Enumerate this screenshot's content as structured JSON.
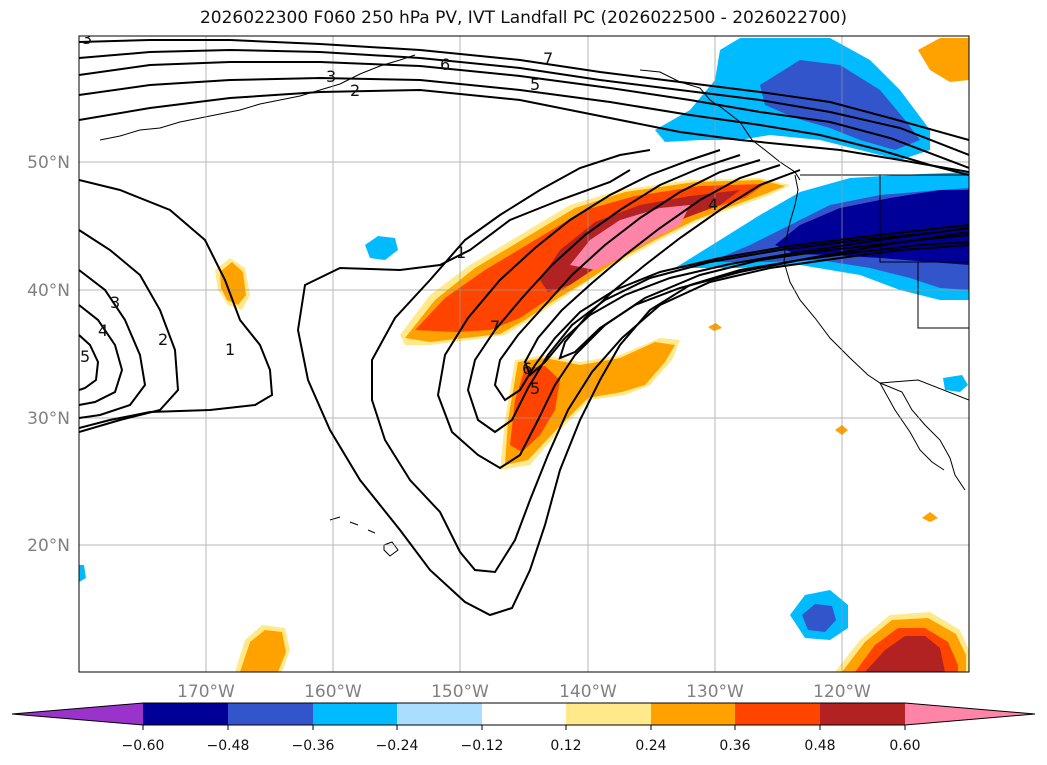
{
  "title": "2026022300 F060 250 hPa PV, IVT Landfall PC (2026022500 - 2026022700)",
  "map": {
    "lat_labels": [
      "20°N",
      "30°N",
      "40°N",
      "50°N"
    ],
    "lon_labels": [
      "170°W",
      "160°W",
      "150°W",
      "140°W",
      "130°W",
      "120°W"
    ],
    "contour_labels": [
      "1",
      "1",
      "2",
      "3",
      "4",
      "5",
      "2",
      "3",
      "5",
      "6",
      "7",
      "4",
      "5",
      "6",
      "7",
      "3"
    ]
  },
  "colorbar": {
    "tick_labels": [
      "−0.60",
      "−0.48",
      "−0.36",
      "−0.24",
      "−0.12",
      "0.12",
      "0.24",
      "0.36",
      "0.48",
      "0.60"
    ],
    "colors": [
      "#9933cc",
      "#000099",
      "#3355cc",
      "#00bbff",
      "#aaddff",
      "#ffffff",
      "#ffe98a",
      "#ffa200",
      "#ff4400",
      "#b22222",
      "#ff85a8"
    ]
  }
}
